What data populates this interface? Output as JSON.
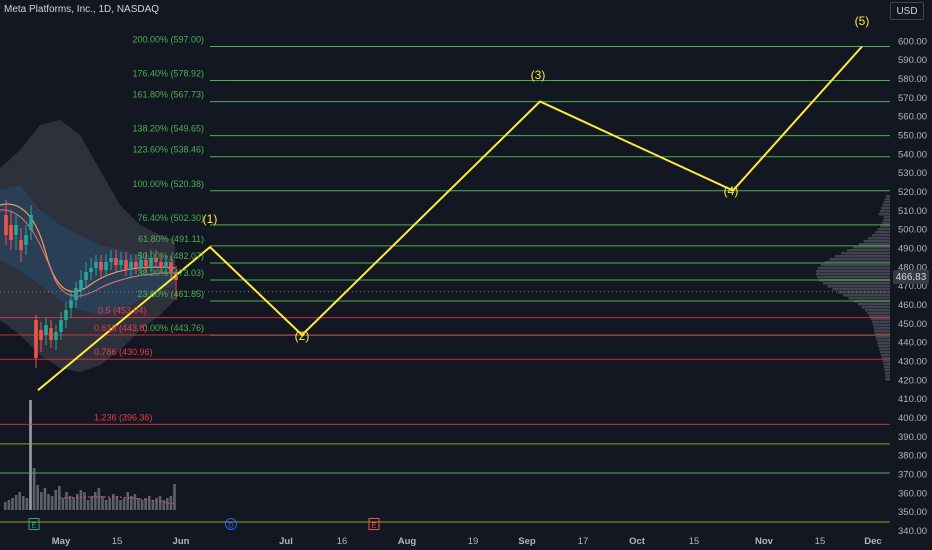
{
  "header": {
    "title": "Meta Platforms, Inc., 1D, NASDAQ",
    "currency": "USD",
    "current_price": "466.83"
  },
  "chart_data": {
    "type": "line",
    "price_axis": {
      "range": [
        336,
        608
      ],
      "ticks": [
        340,
        350,
        360,
        370,
        380,
        390,
        400,
        410,
        420,
        430,
        440,
        450,
        460,
        470,
        480,
        490,
        500,
        510,
        520,
        530,
        540,
        550,
        560,
        570,
        580,
        590,
        600
      ]
    },
    "time_axis": {
      "labels": [
        "May",
        "15",
        "Jun",
        "Jul",
        "16",
        "Aug",
        "19",
        "Sep",
        "17",
        "Oct",
        "15",
        "Nov",
        "15",
        "Dec"
      ]
    },
    "event_markers": [
      "E",
      "D",
      "E"
    ],
    "fib_extension_levels": [
      {
        "label": "200.00% (597.00)",
        "price": 597.0,
        "color": "green"
      },
      {
        "label": "176.40% (578.92)",
        "price": 578.92,
        "color": "green"
      },
      {
        "label": "161.80% (567.73)",
        "price": 567.73,
        "color": "green"
      },
      {
        "label": "138.20% (549.65)",
        "price": 549.65,
        "color": "green"
      },
      {
        "label": "123.60% (538.46)",
        "price": 538.46,
        "color": "green"
      },
      {
        "label": "100.00% (520.38)",
        "price": 520.38,
        "color": "green"
      },
      {
        "label": "76.40% (502.30)",
        "price": 502.3,
        "color": "green"
      },
      {
        "label": "61.80% (491.11)",
        "price": 491.11,
        "color": "green"
      },
      {
        "label": "50.00% (482.07)",
        "price": 482.07,
        "color": "green"
      },
      {
        "label": "38.20% (473.03)",
        "price": 473.03,
        "color": "green"
      },
      {
        "label": "23.60% (461.85)",
        "price": 461.85,
        "color": "green"
      },
      {
        "label": "0.00% (443.76)",
        "price": 443.76,
        "color": "green"
      }
    ],
    "fib_retracement_levels": [
      {
        "label": "0.5 (453.04)",
        "price": 453.04
      },
      {
        "label": "0.618 (443.8)",
        "price": 443.8
      },
      {
        "label": "0.786 (430.96)",
        "price": 430.96
      },
      {
        "label": "1.236 (396.36)",
        "price": 396.36
      }
    ],
    "extra_lines": [
      {
        "price": 386,
        "color": "olive"
      },
      {
        "price": 370.5,
        "color": "green"
      },
      {
        "price": 344.5,
        "color": "olive"
      }
    ],
    "elliott_wave": {
      "labels": [
        "(1)",
        "(2)",
        "(3)",
        "(4)",
        "(5)"
      ],
      "start_price": 414.5,
      "prices": [
        490.5,
        443.8,
        567.8,
        520.5,
        597.0
      ]
    },
    "colors": {
      "background": "#131722",
      "fib_green": "#4caf50",
      "fib_red": "#f23645",
      "wave_yellow": "#ffeb3b",
      "up_candle": "#26a69a",
      "down_candle": "#ef5350",
      "band_outer": "#5d606b",
      "band_inner": "#2a4a6b"
    }
  }
}
